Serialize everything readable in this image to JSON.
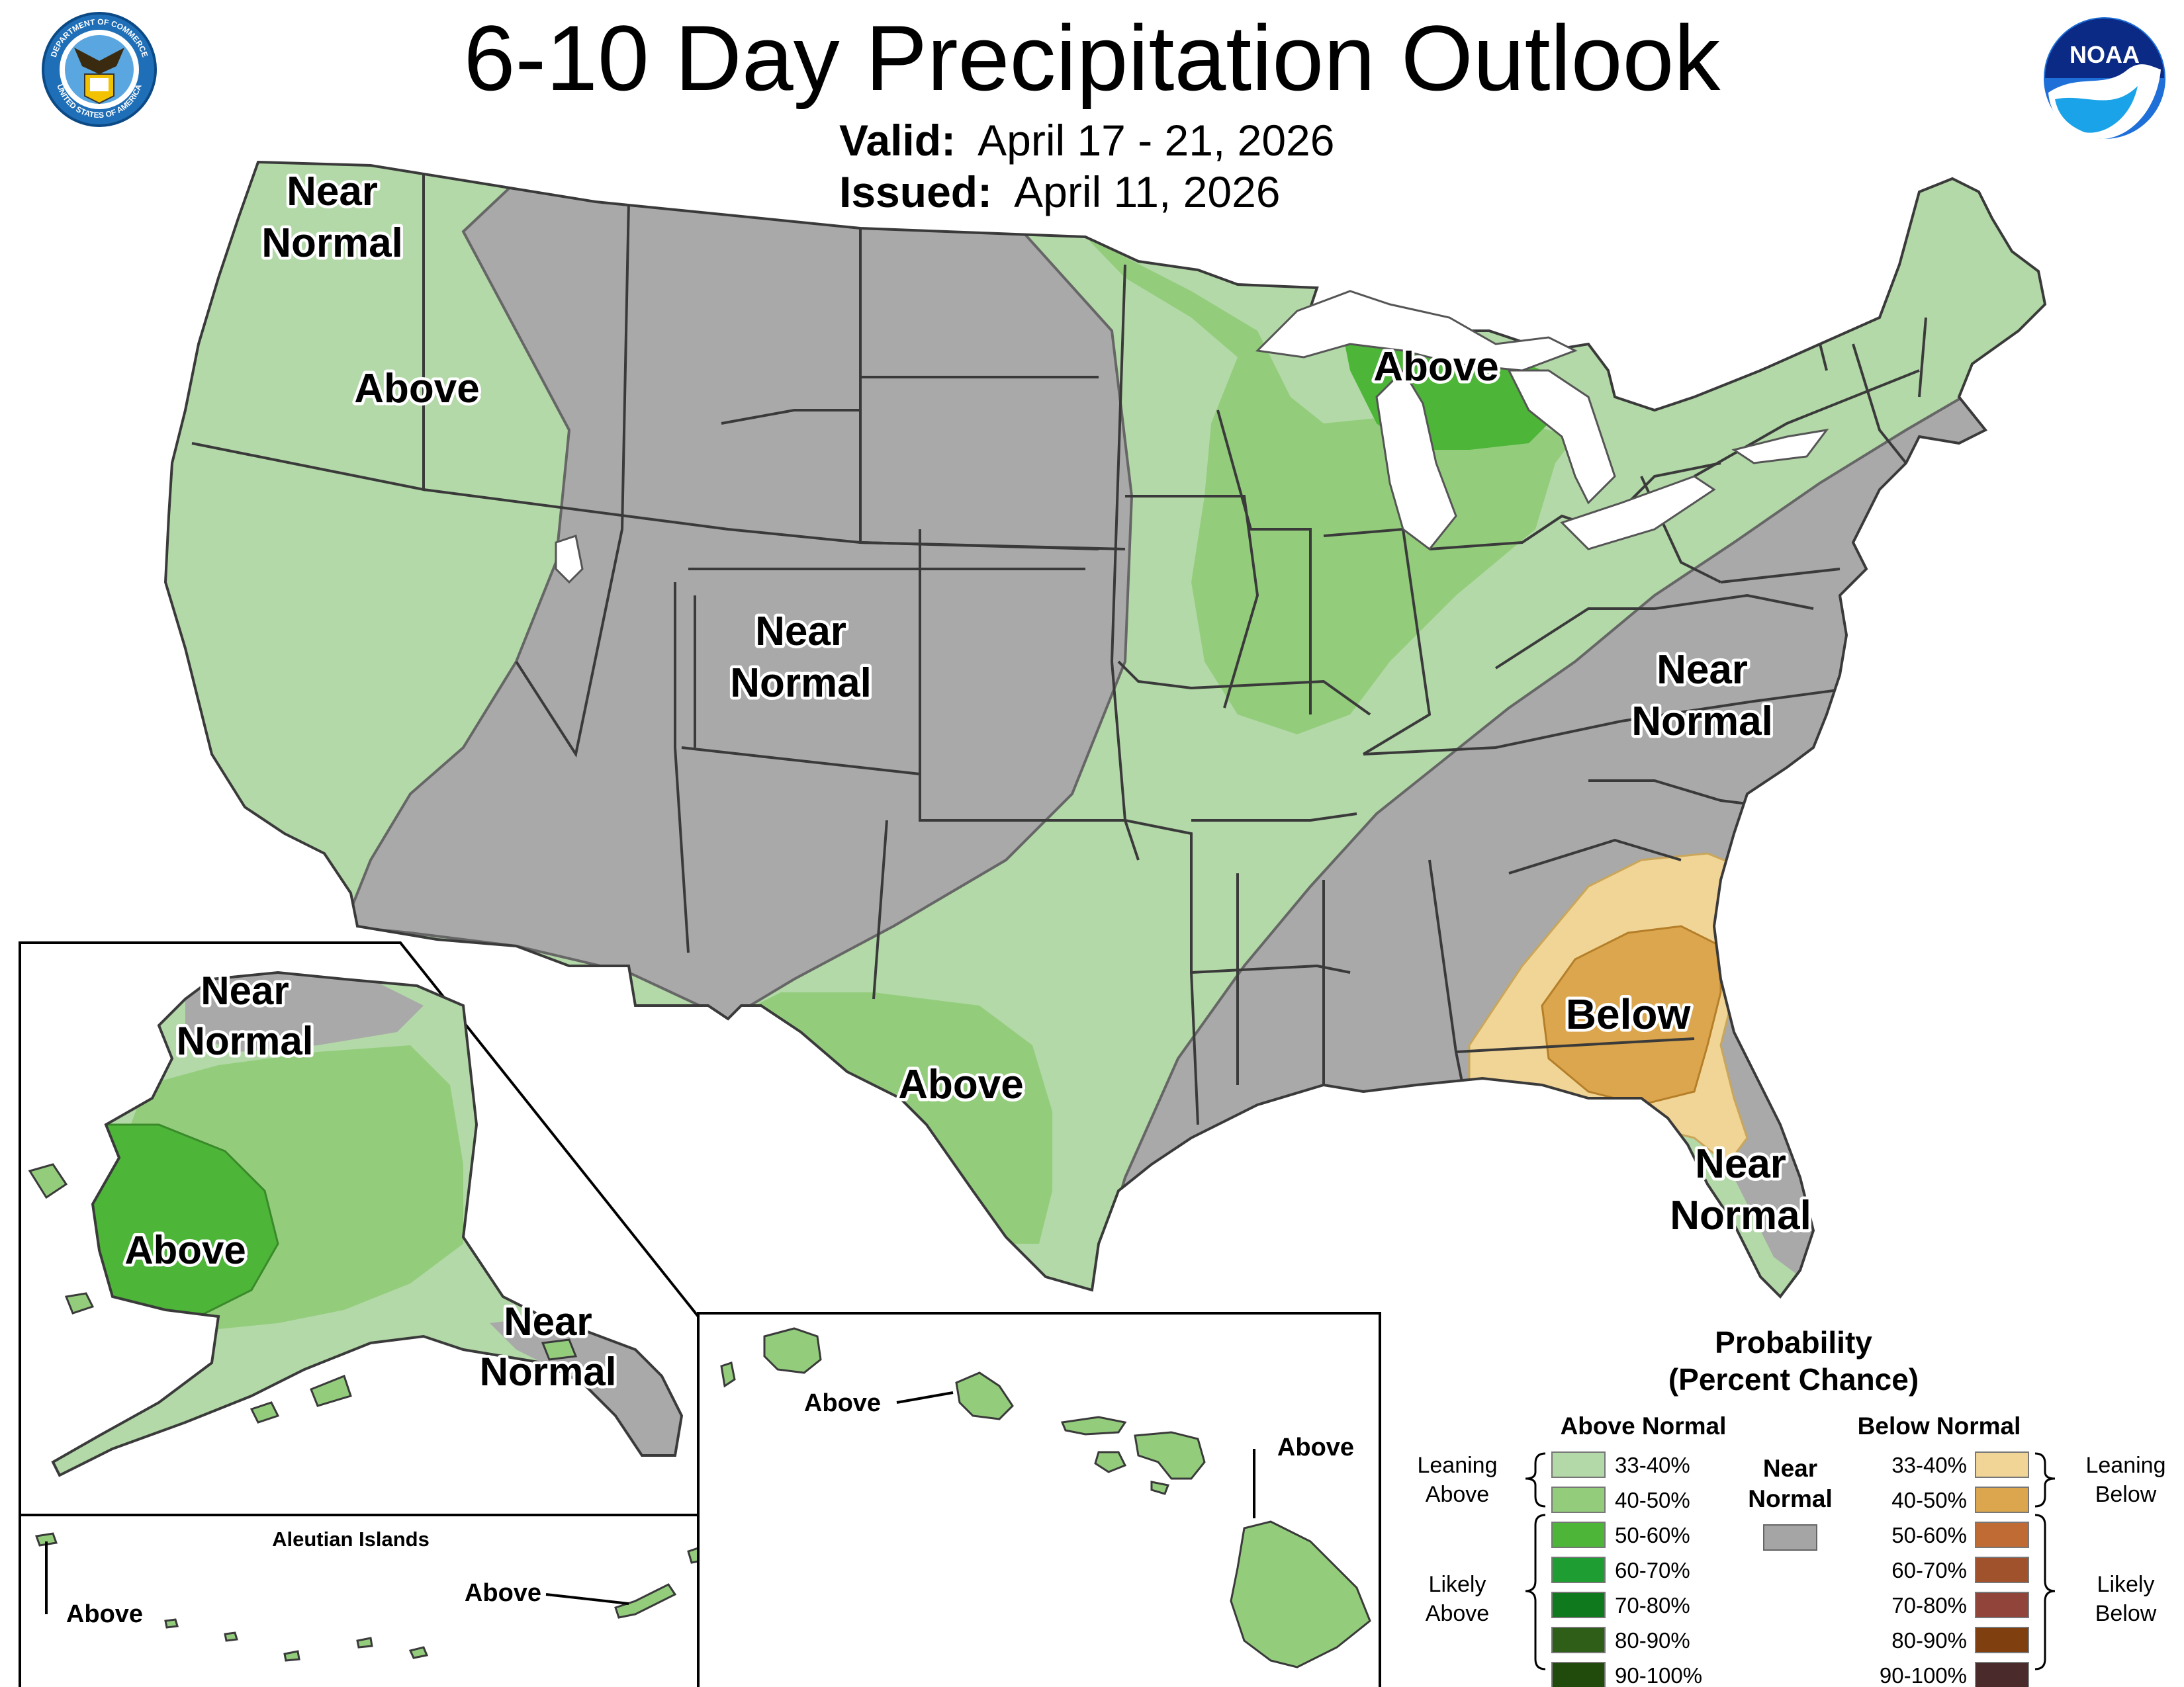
{
  "header": {
    "title": "6-10 Day Precipitation Outlook",
    "valid_label": "Valid:",
    "valid_value": "April 17 - 21, 2026",
    "issued_label": "Issued:",
    "issued_value": "April 11, 2026"
  },
  "logos": {
    "commerce_top": "DEPARTMENT OF COMMERCE",
    "commerce_bottom": "UNITED STATES OF AMERICA",
    "noaa": "NOAA"
  },
  "map_labels": {
    "nw_near_1": "Near",
    "nw_near_2": "Normal",
    "nw_above": "Above",
    "central_near_1": "Near",
    "central_near_2": "Normal",
    "great_lakes_above": "Above",
    "east_near_1": "Near",
    "east_near_2": "Normal",
    "texas_above": "Above",
    "southeast_below": "Below",
    "florida_near_1": "Near",
    "florida_near_2": "Normal"
  },
  "alaska": {
    "north_near_1": "Near",
    "north_near_2": "Normal",
    "west_above": "Above",
    "se_near_1": "Near",
    "se_near_2": "Normal"
  },
  "aleutians": {
    "title": "Aleutian Islands",
    "west_above": "Above",
    "east_above": "Above"
  },
  "hawaii": {
    "west_above": "Above",
    "east_above": "Above"
  },
  "legend": {
    "title_1": "Probability",
    "title_2": "(Percent Chance)",
    "above_header": "Above Normal",
    "below_header": "Below Normal",
    "near_1": "Near",
    "near_2": "Normal",
    "leaning_above_1": "Leaning",
    "leaning_above_2": "Above",
    "likely_above_1": "Likely",
    "likely_above_2": "Above",
    "leaning_below_1": "Leaning",
    "leaning_below_2": "Below",
    "likely_below_1": "Likely",
    "likely_below_2": "Below",
    "above": [
      {
        "label": "33-40%",
        "color": "#b3d9a8"
      },
      {
        "label": "40-50%",
        "color": "#93cd7c"
      },
      {
        "label": "50-60%",
        "color": "#4db538"
      },
      {
        "label": "60-70%",
        "color": "#1e9e32"
      },
      {
        "label": "70-80%",
        "color": "#0f7a1d"
      },
      {
        "label": "80-90%",
        "color": "#2f5e19"
      },
      {
        "label": "90-100%",
        "color": "#214a0d"
      }
    ],
    "below": [
      {
        "label": "33-40%",
        "color": "#f1d596"
      },
      {
        "label": "40-50%",
        "color": "#dba64d"
      },
      {
        "label": "50-60%",
        "color": "#bf6b33"
      },
      {
        "label": "60-70%",
        "color": "#a0522d"
      },
      {
        "label": "70-80%",
        "color": "#91443a"
      },
      {
        "label": "80-90%",
        "color": "#7f3f0e"
      },
      {
        "label": "90-100%",
        "color": "#4a2a2a"
      }
    ],
    "near_color": "#a5a5a5"
  }
}
